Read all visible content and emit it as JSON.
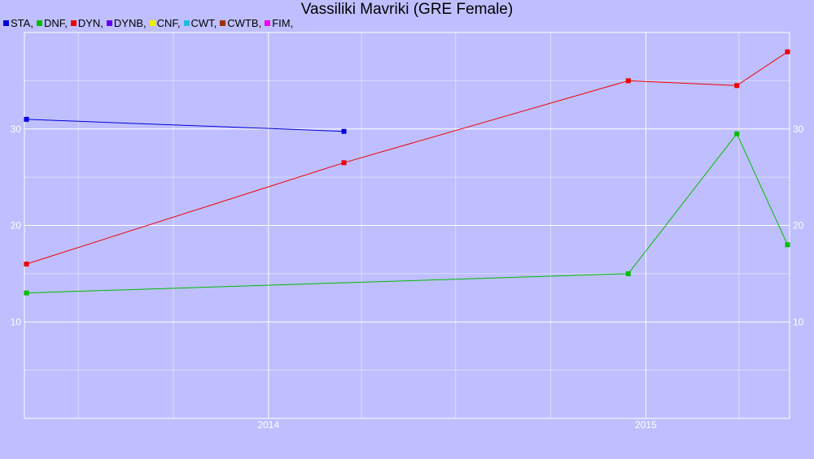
{
  "chart_data": {
    "type": "line",
    "title": "Vassiliki Mavriki (GRE Female)",
    "xlabel": "",
    "ylabel": "",
    "xlim": [
      "2013-05-10",
      "2015-05-20"
    ],
    "ylim": [
      0,
      40
    ],
    "x_ticks": [
      {
        "date": "2014-01-01",
        "label": "2014"
      },
      {
        "date": "2015-01-01",
        "label": "2015"
      }
    ],
    "y_ticks": [
      10,
      20,
      30
    ],
    "grid": true,
    "legend_position": "top-left",
    "legend": [
      {
        "label": "STA,",
        "color": "#0000dd"
      },
      {
        "label": "DNF,",
        "color": "#00bb00"
      },
      {
        "label": "DYN,",
        "color": "#ee0000"
      },
      {
        "label": "DYNB,",
        "color": "#6600ee"
      },
      {
        "label": "CNF,",
        "color": "#eeee00"
      },
      {
        "label": "CWT,",
        "color": "#22bbdd"
      },
      {
        "label": "CWTB,",
        "color": "#993300"
      },
      {
        "label": "FIM,",
        "color": "#ee00ee"
      }
    ],
    "series": [
      {
        "key": "sta",
        "color": "#0000dd",
        "points": [
          {
            "x": "2013-05-12",
            "y": 31.0
          },
          {
            "x": "2014-03-15",
            "y": 29.75
          }
        ]
      },
      {
        "key": "dnf",
        "color": "#00bb00",
        "points": [
          {
            "x": "2013-05-12",
            "y": 13.0
          },
          {
            "x": "2014-12-15",
            "y": 15.0
          },
          {
            "x": "2015-03-30",
            "y": 29.5
          },
          {
            "x": "2015-05-18",
            "y": 18.0
          }
        ]
      },
      {
        "key": "dyn",
        "color": "#ee0000",
        "points": [
          {
            "x": "2013-05-12",
            "y": 16.0
          },
          {
            "x": "2014-03-15",
            "y": 26.5
          },
          {
            "x": "2014-12-15",
            "y": 35.0
          },
          {
            "x": "2015-03-30",
            "y": 34.5
          },
          {
            "x": "2015-05-18",
            "y": 38.0
          }
        ]
      }
    ]
  }
}
